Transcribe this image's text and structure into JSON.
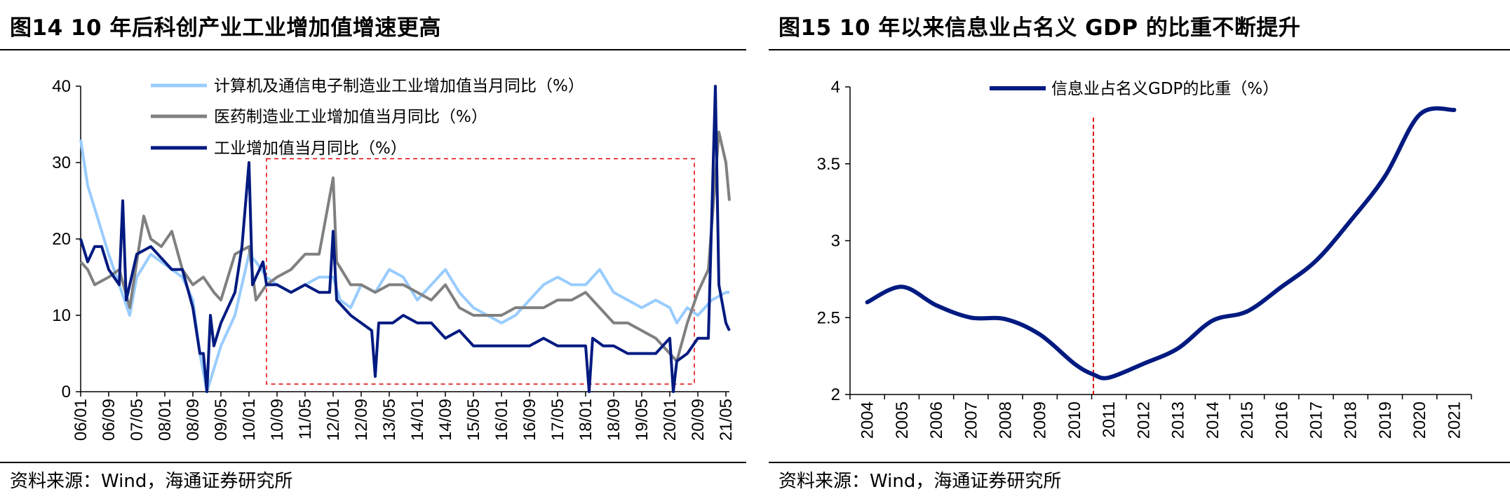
{
  "left": {
    "title": "图14 10 年后科创产业工业增加值增速更高",
    "source": "资料来源：Wind，海通证券研究所",
    "chart_data": {
      "type": "line",
      "ylim": [
        0,
        40
      ],
      "yticks": [
        0,
        10,
        20,
        30,
        40
      ],
      "xticks": [
        "06/01",
        "06/09",
        "07/05",
        "08/01",
        "08/09",
        "09/05",
        "10/01",
        "10/09",
        "11/05",
        "12/01",
        "12/09",
        "13/05",
        "14/01",
        "14/09",
        "15/05",
        "16/01",
        "16/09",
        "17/05",
        "18/01",
        "18/09",
        "19/05",
        "20/01",
        "20/09",
        "21/05"
      ],
      "highlight_box": {
        "x_from": "10/06",
        "x_to": "20/08",
        "y_from": 1,
        "y_to": 30.5,
        "style": "red-dashed"
      },
      "series": [
        {
          "name": "计算机及通信电子制造业工业增加值当月同比（%）",
          "color": "#99CCFF",
          "points": [
            [
              "06/01",
              33
            ],
            [
              "06/03",
              27
            ],
            [
              "06/05",
              24
            ],
            [
              "06/09",
              18
            ],
            [
              "06/12",
              14
            ],
            [
              "07/03",
              10
            ],
            [
              "07/05",
              15
            ],
            [
              "07/09",
              18
            ],
            [
              "07/12",
              17
            ],
            [
              "08/03",
              16
            ],
            [
              "08/06",
              15
            ],
            [
              "08/09",
              12
            ],
            [
              "08/11",
              5
            ],
            [
              "09/01",
              0
            ],
            [
              "09/03",
              3
            ],
            [
              "09/05",
              6
            ],
            [
              "09/09",
              10
            ],
            [
              "10/01",
              18
            ],
            [
              "10/03",
              17
            ],
            [
              "10/06",
              15
            ],
            [
              "10/09",
              14
            ],
            [
              "11/01",
              13
            ],
            [
              "11/05",
              14
            ],
            [
              "11/09",
              15
            ],
            [
              "12/01",
              15
            ],
            [
              "12/03",
              12
            ],
            [
              "12/06",
              11
            ],
            [
              "12/09",
              14
            ],
            [
              "13/01",
              13
            ],
            [
              "13/05",
              16
            ],
            [
              "13/09",
              15
            ],
            [
              "14/01",
              12
            ],
            [
              "14/05",
              14
            ],
            [
              "14/09",
              16
            ],
            [
              "15/01",
              13
            ],
            [
              "15/05",
              11
            ],
            [
              "15/09",
              10
            ],
            [
              "16/01",
              9
            ],
            [
              "16/05",
              10
            ],
            [
              "16/09",
              12
            ],
            [
              "17/01",
              14
            ],
            [
              "17/05",
              15
            ],
            [
              "17/09",
              14
            ],
            [
              "18/01",
              14
            ],
            [
              "18/05",
              16
            ],
            [
              "18/09",
              13
            ],
            [
              "19/01",
              12
            ],
            [
              "19/05",
              11
            ],
            [
              "19/09",
              12
            ],
            [
              "20/01",
              11
            ],
            [
              "20/03",
              9
            ],
            [
              "20/06",
              11
            ],
            [
              "20/09",
              10
            ],
            [
              "21/01",
              12
            ],
            [
              "21/05",
              13
            ],
            [
              "21/06",
              13
            ]
          ]
        },
        {
          "name": "医药制造业工业增加值当月同比（%）",
          "color": "#808080",
          "points": [
            [
              "06/01",
              17
            ],
            [
              "06/03",
              16
            ],
            [
              "06/05",
              14
            ],
            [
              "06/09",
              15
            ],
            [
              "06/12",
              16
            ],
            [
              "07/03",
              11
            ],
            [
              "07/05",
              17
            ],
            [
              "07/07",
              23
            ],
            [
              "07/09",
              20
            ],
            [
              "07/12",
              19
            ],
            [
              "08/03",
              21
            ],
            [
              "08/06",
              16
            ],
            [
              "08/09",
              14
            ],
            [
              "08/12",
              15
            ],
            [
              "09/03",
              13
            ],
            [
              "09/05",
              12
            ],
            [
              "09/09",
              18
            ],
            [
              "10/01",
              19
            ],
            [
              "10/03",
              12
            ],
            [
              "10/06",
              14
            ],
            [
              "10/09",
              15
            ],
            [
              "11/01",
              16
            ],
            [
              "11/05",
              18
            ],
            [
              "11/09",
              18
            ],
            [
              "12/01",
              28
            ],
            [
              "12/02",
              17
            ],
            [
              "12/06",
              14
            ],
            [
              "12/09",
              14
            ],
            [
              "13/01",
              13
            ],
            [
              "13/05",
              14
            ],
            [
              "13/09",
              14
            ],
            [
              "14/01",
              13
            ],
            [
              "14/05",
              12
            ],
            [
              "14/09",
              14
            ],
            [
              "15/01",
              11
            ],
            [
              "15/05",
              10
            ],
            [
              "15/09",
              10
            ],
            [
              "16/01",
              10
            ],
            [
              "16/05",
              11
            ],
            [
              "16/09",
              11
            ],
            [
              "17/01",
              11
            ],
            [
              "17/05",
              12
            ],
            [
              "17/09",
              12
            ],
            [
              "18/01",
              13
            ],
            [
              "18/05",
              11
            ],
            [
              "18/09",
              9
            ],
            [
              "19/01",
              9
            ],
            [
              "19/05",
              8
            ],
            [
              "19/09",
              7
            ],
            [
              "20/01",
              5
            ],
            [
              "20/03",
              4
            ],
            [
              "20/06",
              9
            ],
            [
              "20/09",
              13
            ],
            [
              "20/12",
              16
            ],
            [
              "21/03",
              34
            ],
            [
              "21/05",
              30
            ],
            [
              "21/06",
              25
            ]
          ]
        },
        {
          "name": "工业增加值当月同比（%）",
          "color": "#001A80",
          "points": [
            [
              "06/01",
              20
            ],
            [
              "06/03",
              17
            ],
            [
              "06/05",
              19
            ],
            [
              "06/07",
              19
            ],
            [
              "06/09",
              16
            ],
            [
              "06/12",
              14
            ],
            [
              "07/01",
              25
            ],
            [
              "07/02",
              12
            ],
            [
              "07/05",
              18
            ],
            [
              "07/09",
              19
            ],
            [
              "08/01",
              17
            ],
            [
              "08/03",
              16
            ],
            [
              "08/06",
              16
            ],
            [
              "08/09",
              11
            ],
            [
              "08/11",
              5
            ],
            [
              "08/12",
              5
            ],
            [
              "09/01",
              0
            ],
            [
              "09/02",
              10
            ],
            [
              "09/03",
              6
            ],
            [
              "09/05",
              9
            ],
            [
              "09/09",
              13
            ],
            [
              "09/11",
              19
            ],
            [
              "10/01",
              30
            ],
            [
              "10/02",
              14
            ],
            [
              "10/05",
              17
            ],
            [
              "10/06",
              14
            ],
            [
              "10/09",
              14
            ],
            [
              "11/01",
              13
            ],
            [
              "11/05",
              14
            ],
            [
              "11/09",
              13
            ],
            [
              "11/12",
              13
            ],
            [
              "12/01",
              21
            ],
            [
              "12/02",
              12
            ],
            [
              "12/06",
              10
            ],
            [
              "12/09",
              9
            ],
            [
              "12/12",
              8
            ],
            [
              "13/01",
              2
            ],
            [
              "13/02",
              9
            ],
            [
              "13/06",
              9
            ],
            [
              "13/09",
              10
            ],
            [
              "14/01",
              9
            ],
            [
              "14/05",
              9
            ],
            [
              "14/09",
              7
            ],
            [
              "15/01",
              8
            ],
            [
              "15/05",
              6
            ],
            [
              "15/09",
              6
            ],
            [
              "16/01",
              6
            ],
            [
              "16/05",
              6
            ],
            [
              "16/09",
              6
            ],
            [
              "17/01",
              7
            ],
            [
              "17/05",
              6
            ],
            [
              "17/09",
              6
            ],
            [
              "18/01",
              6
            ],
            [
              "18/02",
              0
            ],
            [
              "18/03",
              7
            ],
            [
              "18/06",
              6
            ],
            [
              "18/09",
              6
            ],
            [
              "19/01",
              5
            ],
            [
              "19/05",
              5
            ],
            [
              "19/09",
              5
            ],
            [
              "20/01",
              7
            ],
            [
              "20/02",
              0
            ],
            [
              "20/03",
              4
            ],
            [
              "20/06",
              5
            ],
            [
              "20/09",
              7
            ],
            [
              "20/12",
              7
            ],
            [
              "21/02",
              40
            ],
            [
              "21/03",
              14
            ],
            [
              "21/05",
              9
            ],
            [
              "21/06",
              8
            ]
          ]
        }
      ]
    }
  },
  "right": {
    "title": "图15 10 年以来信息业占名义 GDP 的比重不断提升",
    "source": "资料来源：Wind，海通证券研究所",
    "chart_data": {
      "type": "line",
      "ylim": [
        2,
        4
      ],
      "yticks": [
        "2",
        "2.5",
        "3",
        "3.5",
        "4"
      ],
      "xticks": [
        "2004",
        "2005",
        "2006",
        "2007",
        "2008",
        "2009",
        "2010",
        "2011",
        "2012",
        "2013",
        "2014",
        "2015",
        "2016",
        "2017",
        "2018",
        "2019",
        "2020",
        "2021"
      ],
      "vline": {
        "x": 2010.55,
        "style": "red-dashed"
      },
      "series": [
        {
          "name": "信息业占名义GDP的比重（%）",
          "color": "#001A80",
          "points": [
            [
              2004.0,
              2.6
            ],
            [
              2005.0,
              2.7
            ],
            [
              2006.0,
              2.58
            ],
            [
              2007.0,
              2.5
            ],
            [
              2008.0,
              2.49
            ],
            [
              2009.0,
              2.39
            ],
            [
              2010.0,
              2.2
            ],
            [
              2010.55,
              2.13
            ],
            [
              2011.0,
              2.11
            ],
            [
              2012.0,
              2.2
            ],
            [
              2013.0,
              2.3
            ],
            [
              2014.0,
              2.48
            ],
            [
              2015.0,
              2.54
            ],
            [
              2016.0,
              2.7
            ],
            [
              2017.0,
              2.87
            ],
            [
              2018.0,
              3.13
            ],
            [
              2019.0,
              3.42
            ],
            [
              2020.0,
              3.82
            ],
            [
              2021.0,
              3.85
            ]
          ]
        }
      ]
    }
  }
}
